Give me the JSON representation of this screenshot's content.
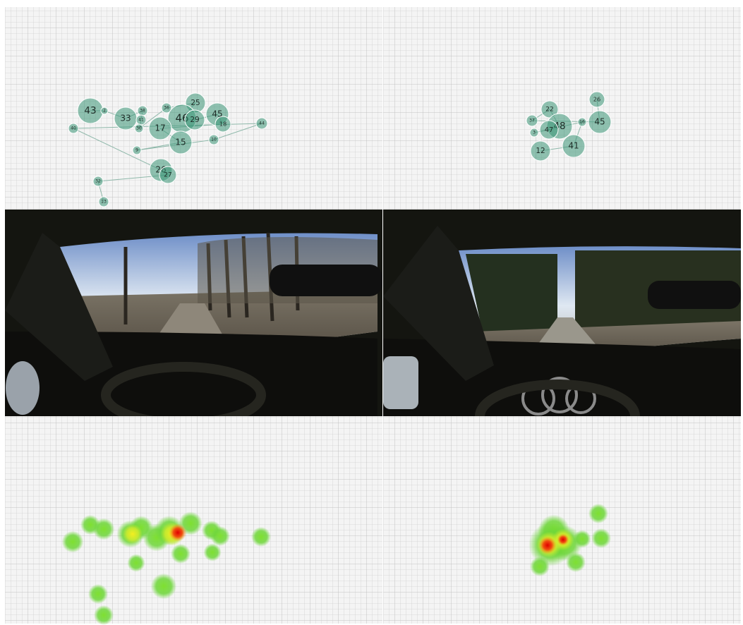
{
  "panels": [
    {
      "fixations": [
        43,
        2,
        33,
        38,
        41,
        30,
        36,
        25,
        46,
        29,
        45,
        18,
        17,
        15,
        9,
        10,
        44,
        40,
        26,
        27,
        32,
        13
      ]
    },
    {
      "fixations": [
        26,
        45,
        37,
        22,
        48,
        47,
        3,
        16,
        41,
        12
      ]
    }
  ]
}
